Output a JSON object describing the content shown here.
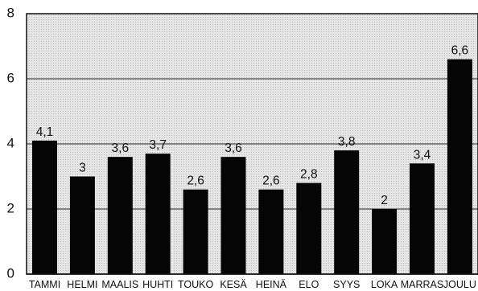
{
  "chart_data": {
    "type": "bar",
    "title": "",
    "xlabel": "",
    "ylabel": "",
    "categories": [
      "TAMMI",
      "HELMI",
      "MAALIS",
      "HUHTI",
      "TOUKO",
      "KESÄ",
      "HEINÄ",
      "ELO",
      "SYYS",
      "LOKA",
      "MARRAS",
      "JOULU"
    ],
    "values": [
      4.1,
      3,
      3.6,
      3.7,
      2.6,
      3.6,
      2.6,
      2.8,
      3.8,
      2,
      3.4,
      6.6
    ],
    "value_labels": [
      "4,1",
      "3",
      "3,6",
      "3,7",
      "2,6",
      "3,6",
      "2,6",
      "2,8",
      "3,8",
      "2",
      "3,4",
      "6,6"
    ],
    "ylim": [
      0,
      8
    ],
    "yticks": [
      0,
      2,
      4,
      6,
      8
    ],
    "ytick_labels": [
      "0",
      "2",
      "4",
      "6",
      "8"
    ],
    "grid": true,
    "legend": "none",
    "colors": {
      "bar": "#050505",
      "plot_background": "#d9d9d9",
      "gridline": "#222222"
    }
  }
}
